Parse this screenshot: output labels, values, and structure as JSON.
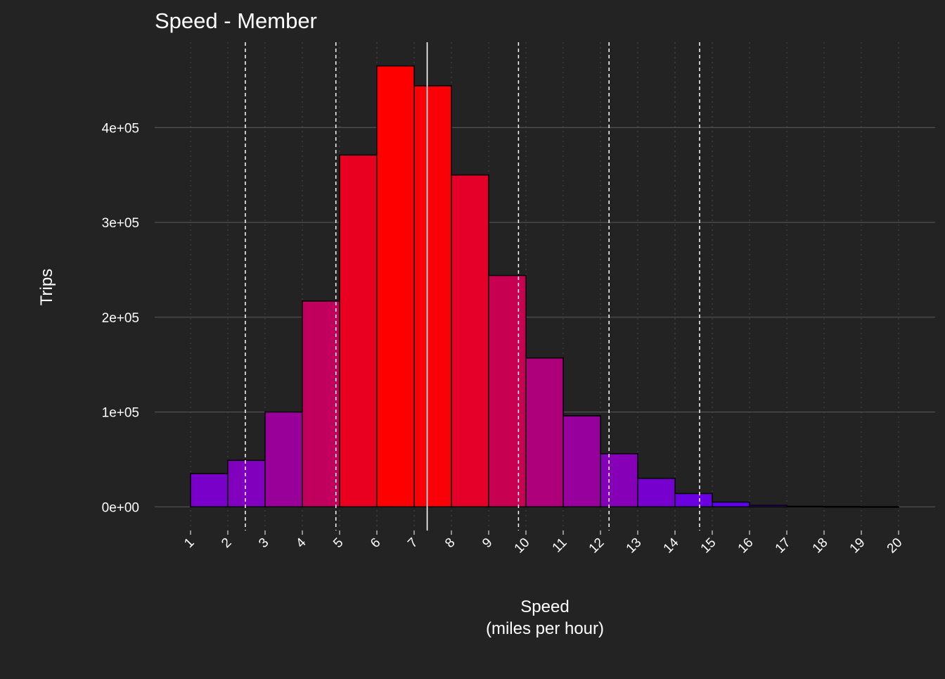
{
  "chart_data": {
    "type": "bar",
    "title": "Speed - Member",
    "xlabel": "Speed",
    "xlabel_sub": "(miles per hour)",
    "ylabel": "Trips",
    "x_ticks": [
      "1",
      "2",
      "3",
      "4",
      "5",
      "6",
      "7",
      "8",
      "9",
      "10",
      "11",
      "12",
      "13",
      "14",
      "15",
      "16",
      "17",
      "18",
      "19",
      "20"
    ],
    "ylim": [
      -25000,
      490000
    ],
    "y_ticks": [
      {
        "value": 0,
        "label": "0e+00"
      },
      {
        "value": 100000,
        "label": "1e+05"
      },
      {
        "value": 200000,
        "label": "2e+05"
      },
      {
        "value": 300000,
        "label": "3e+05"
      },
      {
        "value": 400000,
        "label": "4e+05"
      }
    ],
    "bins": [
      {
        "from": 1,
        "to": 2,
        "value": 35000
      },
      {
        "from": 2,
        "to": 3,
        "value": 49000
      },
      {
        "from": 3,
        "to": 4,
        "value": 100000
      },
      {
        "from": 4,
        "to": 5,
        "value": 217000
      },
      {
        "from": 5,
        "to": 6,
        "value": 371000
      },
      {
        "from": 6,
        "to": 7,
        "value": 465000
      },
      {
        "from": 7,
        "to": 8,
        "value": 444000
      },
      {
        "from": 8,
        "to": 9,
        "value": 350000
      },
      {
        "from": 9,
        "to": 10,
        "value": 244000
      },
      {
        "from": 10,
        "to": 11,
        "value": 157000
      },
      {
        "from": 11,
        "to": 12,
        "value": 96000
      },
      {
        "from": 12,
        "to": 13,
        "value": 56000
      },
      {
        "from": 13,
        "to": 14,
        "value": 30000
      },
      {
        "from": 14,
        "to": 15,
        "value": 14000
      },
      {
        "from": 15,
        "to": 16,
        "value": 5000
      },
      {
        "from": 16,
        "to": 17,
        "value": 1500
      },
      {
        "from": 17,
        "to": 18,
        "value": 600
      },
      {
        "from": 18,
        "to": 19,
        "value": 300
      },
      {
        "from": 19,
        "to": 20,
        "value": 150
      }
    ],
    "mean_line": 7.35,
    "sd_lines": [
      2.47,
      4.9,
      9.8,
      12.23,
      14.66
    ],
    "grid": true,
    "legend": "none",
    "colors": {
      "background": "#232323",
      "text": "#ffffff",
      "gridline": "#555555",
      "bar_outline": "#000000",
      "low": "#5500ff",
      "high": "#ff0000"
    }
  }
}
